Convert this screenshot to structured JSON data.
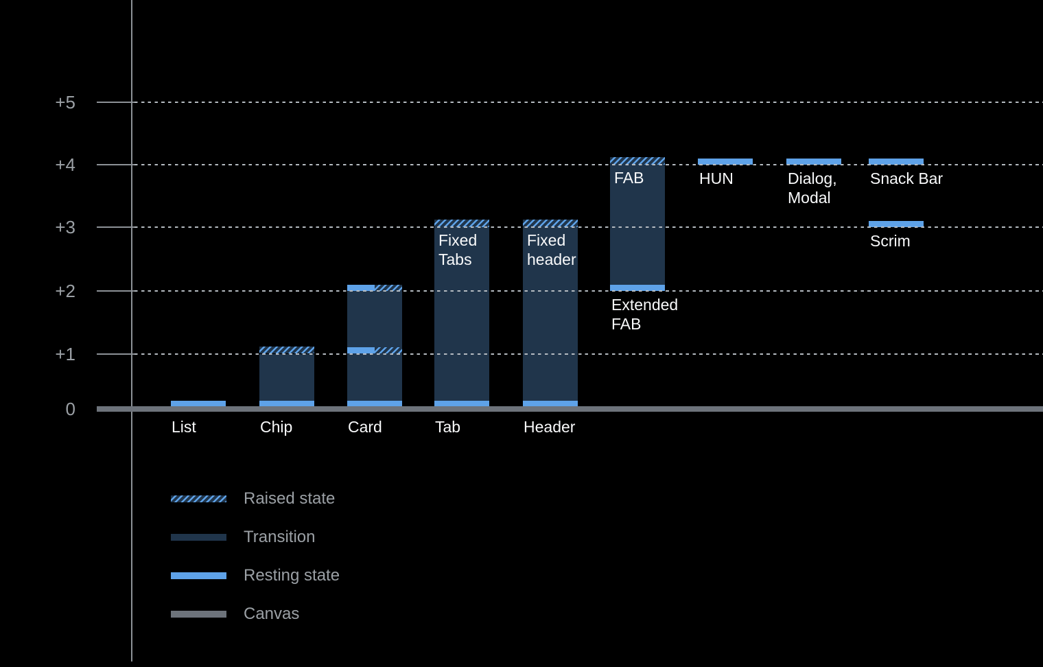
{
  "colors": {
    "background": "#000000",
    "resting_blue": "#5ea2e8",
    "transition_navy": "#20354b",
    "canvas_gray": "#6d737b",
    "axis_gray": "#8d9297",
    "grid_dot": "#b5bbc1",
    "tick_label_gray": "#9ba0a5",
    "legend_label_gray": "#9ba0a5",
    "bar_label_white": "#f8f9fa"
  },
  "chart_data": {
    "type": "bar",
    "title": "",
    "xlabel": "",
    "ylabel": "",
    "ylim": [
      0,
      5
    ],
    "y_tick_labels": [
      "0",
      "+1",
      "+2",
      "+3",
      "+4",
      "+5"
    ],
    "grid": "horizontal-dotted",
    "baseline": "Canvas",
    "legend_position": "bottom-left",
    "y_axis_ticks": [
      {
        "label": "+5",
        "value": 5
      },
      {
        "label": "+4",
        "value": 4
      },
      {
        "label": "+3",
        "value": 3
      },
      {
        "label": "+2",
        "value": 2
      },
      {
        "label": "+1",
        "value": 1
      },
      {
        "label": "0",
        "value": 0
      }
    ],
    "bars": [
      {
        "name": "List",
        "category_label": "List",
        "segments": [
          {
            "kind": "resting",
            "from": 0,
            "to": 0.1
          }
        ]
      },
      {
        "name": "Chip",
        "category_label": "Chip",
        "segments": [
          {
            "kind": "transition",
            "from": 0,
            "to": 1
          },
          {
            "kind": "raised",
            "from": 1,
            "to": 1.12
          },
          {
            "kind": "resting",
            "from": 0,
            "to": 0.1
          }
        ]
      },
      {
        "name": "Card",
        "category_label": "Card",
        "segments": [
          {
            "kind": "transition",
            "from": 0,
            "to": 2
          },
          {
            "kind": "resting_raised",
            "from": 2,
            "to": 2.1
          },
          {
            "kind": "resting_raised",
            "from": 1,
            "to": 1.1
          },
          {
            "kind": "resting",
            "from": 0,
            "to": 0.1
          }
        ]
      },
      {
        "name": "Tab",
        "category_label": "Tab",
        "inner_label": "Fixed\nTabs",
        "segments": [
          {
            "kind": "transition",
            "from": 0,
            "to": 3
          },
          {
            "kind": "raised",
            "from": 3,
            "to": 3.12
          },
          {
            "kind": "resting",
            "from": 0,
            "to": 0.1
          }
        ]
      },
      {
        "name": "Header",
        "category_label": "Header",
        "inner_label": "Fixed\nheader",
        "segments": [
          {
            "kind": "transition",
            "from": 0,
            "to": 3
          },
          {
            "kind": "raised",
            "from": 3,
            "to": 3.12
          },
          {
            "kind": "resting",
            "from": 0,
            "to": 0.1
          }
        ]
      },
      {
        "name": "FAB",
        "inner_label": "FAB",
        "below_label": "Extended\nFAB",
        "segments": [
          {
            "kind": "transition",
            "from": 2.1,
            "to": 4
          },
          {
            "kind": "raised",
            "from": 4,
            "to": 4.12
          },
          {
            "kind": "resting",
            "from": 2,
            "to": 2.1
          }
        ]
      },
      {
        "name": "HUN",
        "below_label": "HUN",
        "segments": [
          {
            "kind": "resting",
            "from": 4,
            "to": 4.1
          }
        ]
      },
      {
        "name": "Dialog, Modal",
        "below_label": "Dialog,\nModal",
        "segments": [
          {
            "kind": "resting",
            "from": 4,
            "to": 4.1
          }
        ]
      },
      {
        "name": "Snack Bar",
        "below_label": "Snack Bar",
        "segments": [
          {
            "kind": "resting",
            "from": 4,
            "to": 4.1
          }
        ]
      },
      {
        "name": "Scrim",
        "below_label": "Scrim",
        "segments": [
          {
            "kind": "resting",
            "from": 3,
            "to": 3.1
          }
        ]
      }
    ],
    "legend": [
      {
        "kind": "raised",
        "label": "Raised state"
      },
      {
        "kind": "transition",
        "label": "Transition"
      },
      {
        "kind": "resting",
        "label": "Resting state"
      },
      {
        "kind": "canvas",
        "label": "Canvas"
      }
    ]
  }
}
